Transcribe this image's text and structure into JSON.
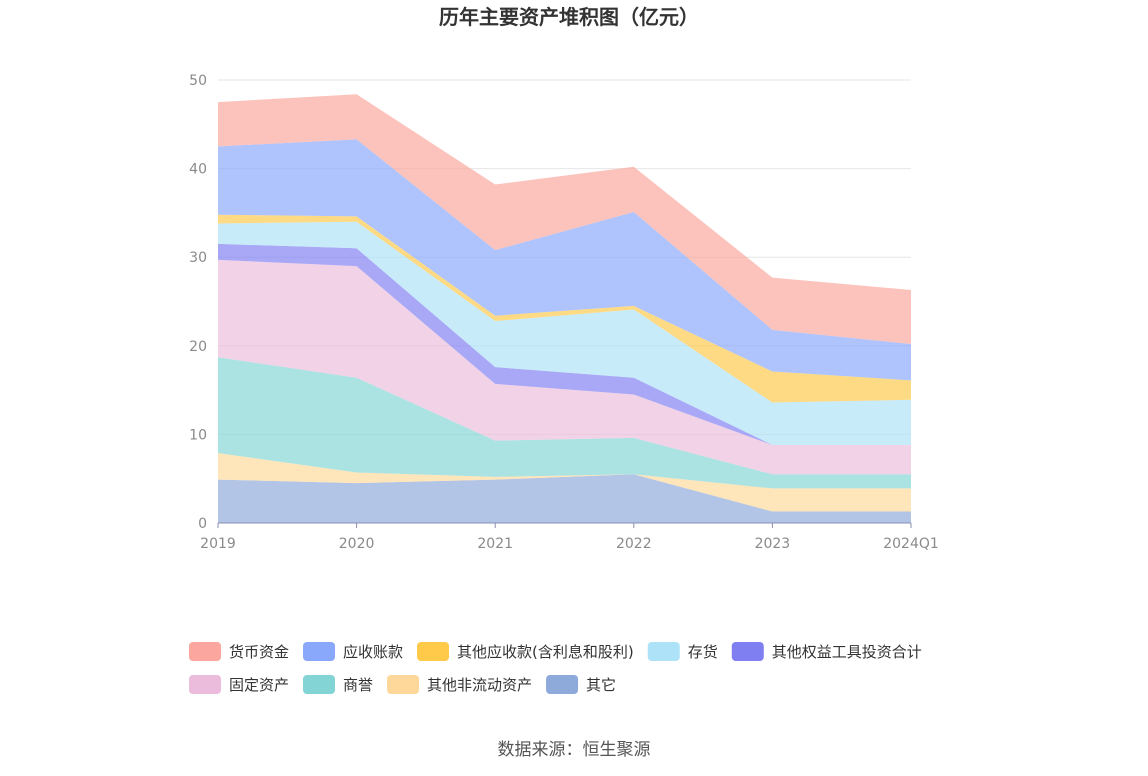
{
  "chart_data": {
    "type": "area",
    "stacked": true,
    "title": "历年主要资产堆积图（亿元）",
    "source": "数据来源：恒生聚源",
    "categories": [
      "2019",
      "2020",
      "2021",
      "2022",
      "2023",
      "2024Q1"
    ],
    "y_ticks": [
      "0",
      "10",
      "20",
      "30",
      "40",
      "50"
    ],
    "ylim": [
      0,
      50
    ],
    "grid": true,
    "legend_position": "bottom",
    "series": [
      {
        "name": "其它",
        "color": "#8eaadb",
        "values": [
          4.9,
          4.5,
          4.9,
          5.5,
          1.3,
          1.3
        ]
      },
      {
        "name": "其他非流动资产",
        "color": "#fdd89a",
        "values": [
          3.0,
          1.2,
          0.3,
          0.0,
          2.6,
          2.6
        ]
      },
      {
        "name": "商誉",
        "color": "#83d5d5",
        "values": [
          10.8,
          10.7,
          4.1,
          4.1,
          1.6,
          1.6
        ]
      },
      {
        "name": "固定资产",
        "color": "#ebbcdc",
        "values": [
          11.0,
          12.6,
          6.4,
          4.9,
          3.3,
          3.3
        ]
      },
      {
        "name": "其他权益工具投资合计",
        "color": "#7f7ff2",
        "values": [
          1.8,
          2.0,
          1.9,
          1.9,
          0.0,
          0.0
        ]
      },
      {
        "name": "存货",
        "color": "#aee2f8",
        "values": [
          2.3,
          3.0,
          5.2,
          7.7,
          4.8,
          5.1
        ]
      },
      {
        "name": "其他应收款(含利息和股利)",
        "color": "#ffc94a",
        "values": [
          1.0,
          0.6,
          0.6,
          0.4,
          3.5,
          2.2
        ]
      },
      {
        "name": "应收账款",
        "color": "#89a8fb",
        "values": [
          7.7,
          8.7,
          7.4,
          10.6,
          4.7,
          4.1
        ]
      },
      {
        "name": "货币资金",
        "color": "#fba69e",
        "values": [
          5.0,
          5.1,
          7.4,
          5.1,
          5.9,
          6.1
        ]
      }
    ],
    "legend_order": [
      "货币资金",
      "应收账款",
      "其他应收款(含利息和股利)",
      "存货",
      "其他权益工具投资合计",
      "固定资产",
      "商誉",
      "其他非流动资产",
      "其它"
    ]
  }
}
